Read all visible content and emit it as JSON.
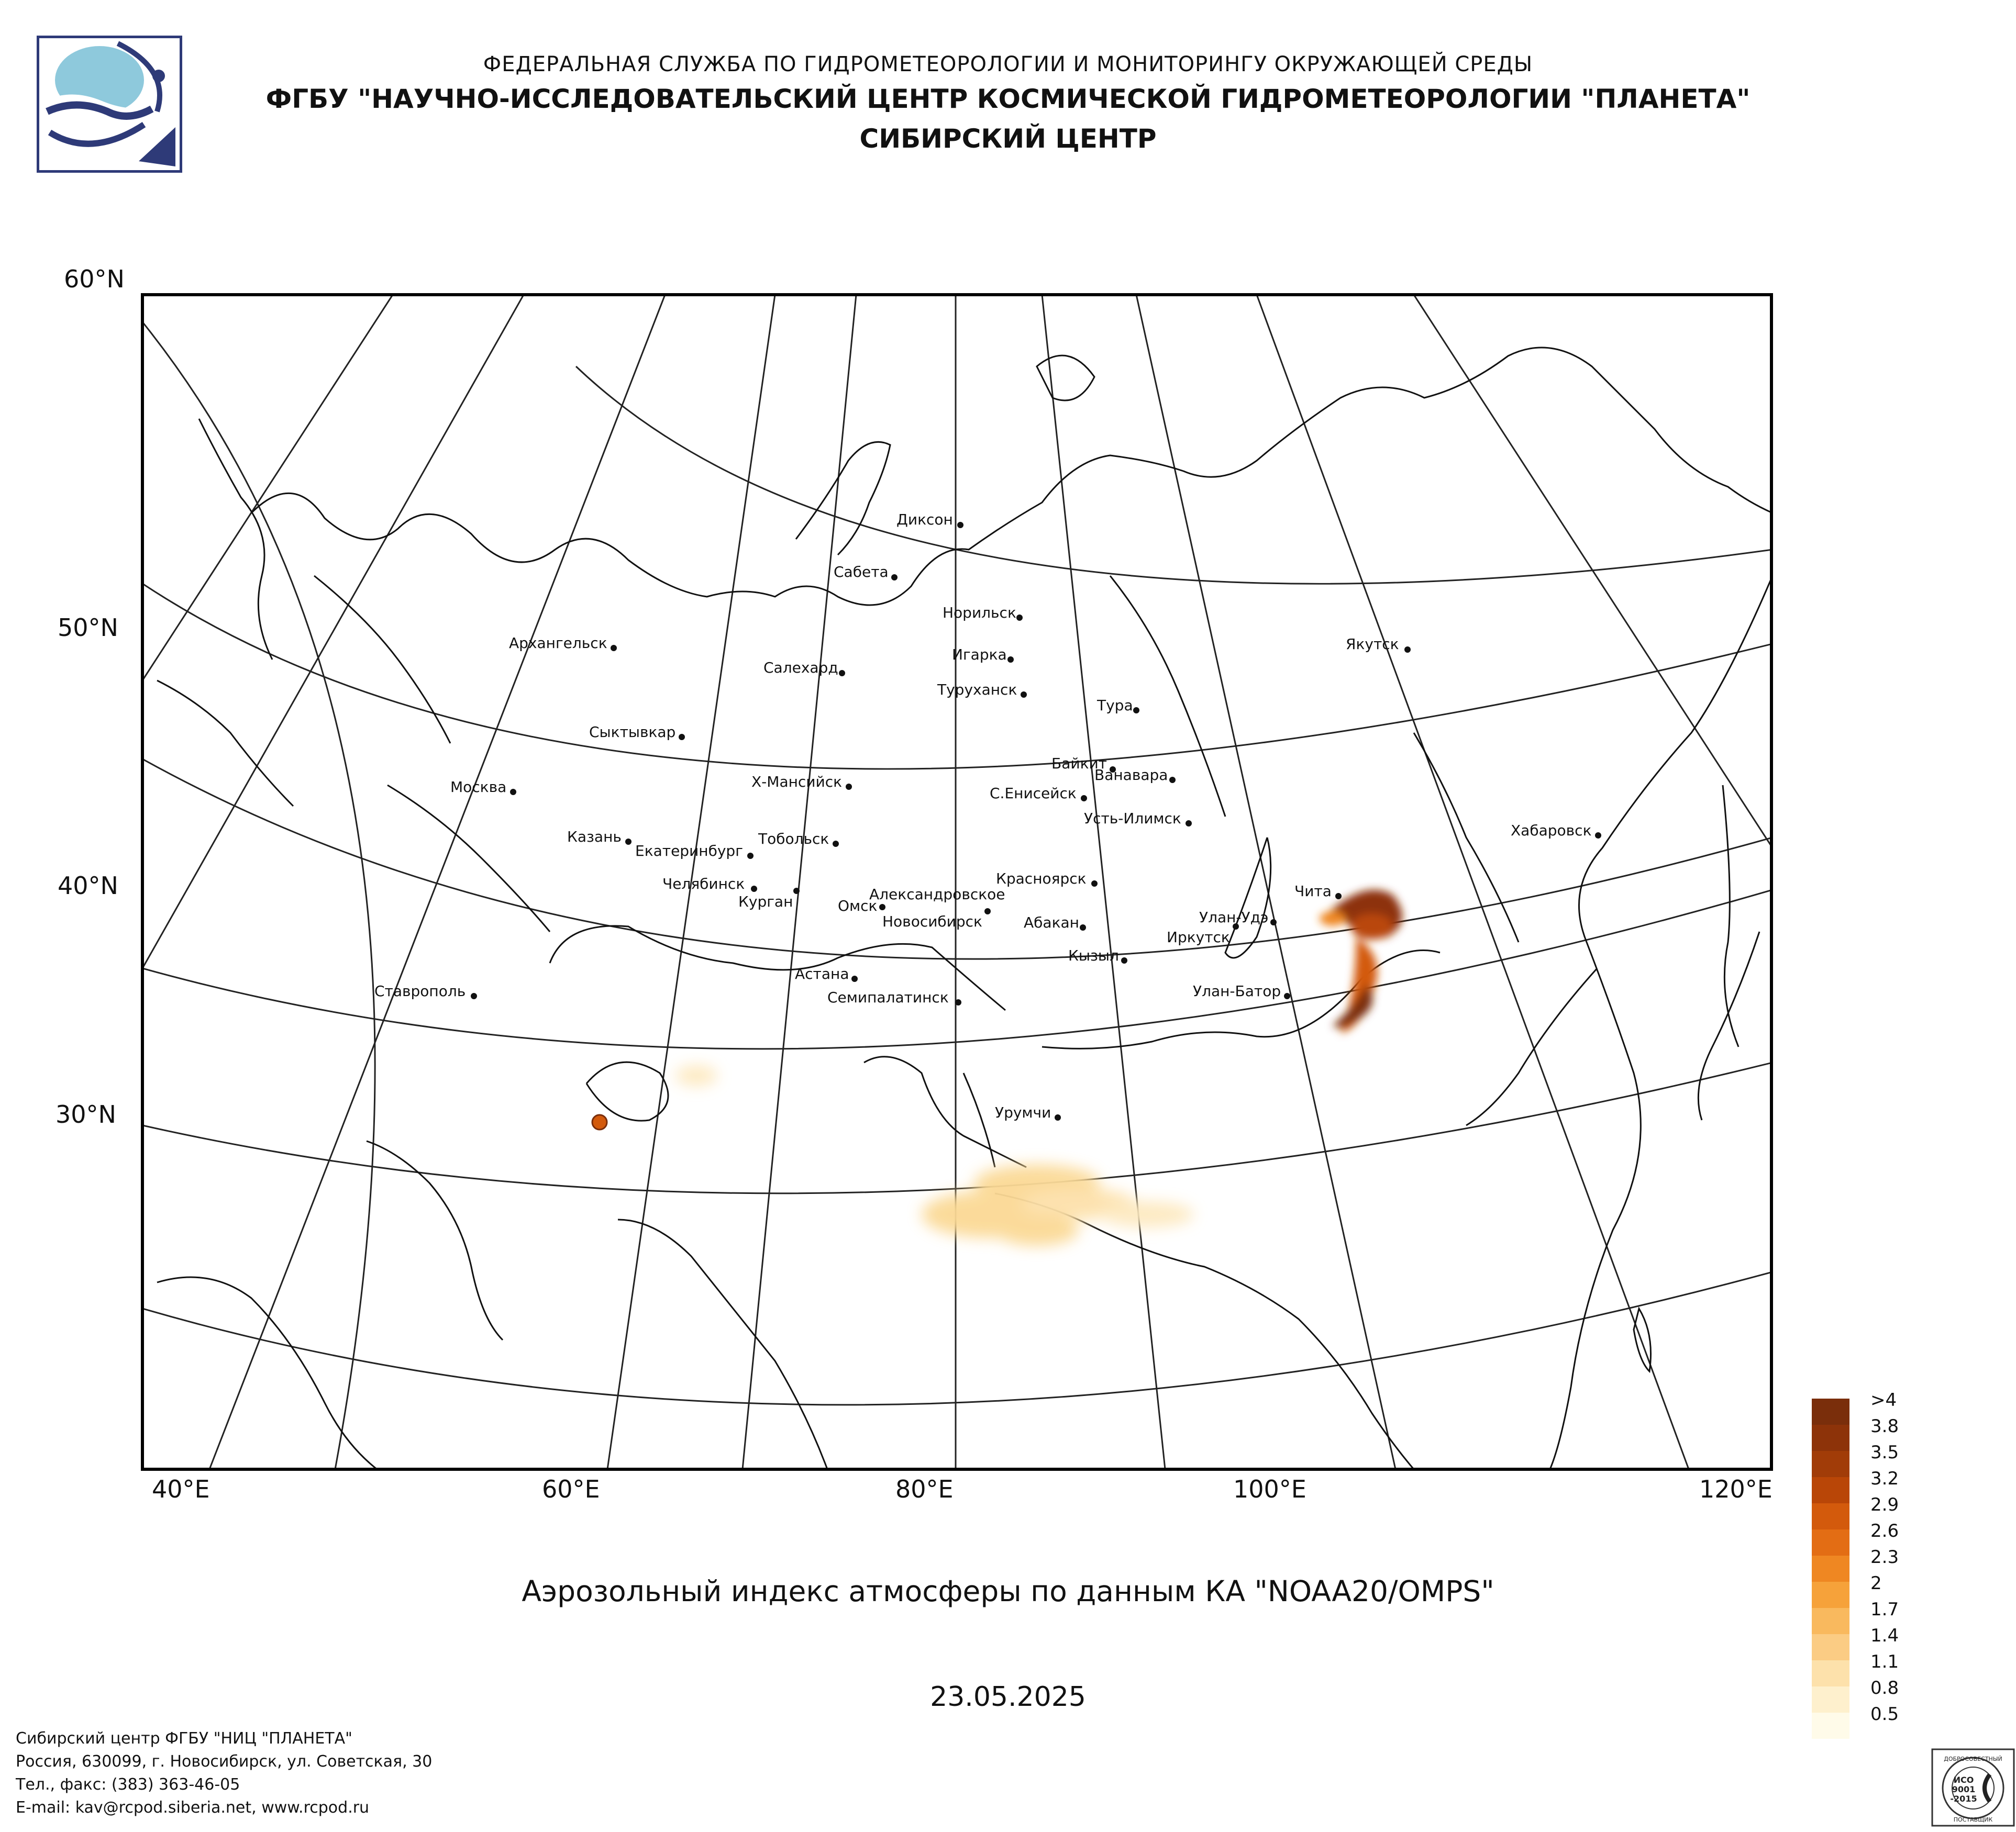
{
  "header": {
    "line1": "ФЕДЕРАЛЬНАЯ СЛУЖБА ПО ГИДРОМЕТЕОРОЛОГИИ И МОНИТОРИНГУ ОКРУЖАЮЩЕЙ СРЕДЫ",
    "line2": "ФГБУ \"НАУЧНО-ИССЛЕДОВАТЕЛЬСКИЙ ЦЕНТР КОСМИЧЕСКОЙ ГИДРОМЕТЕОРОЛОГИИ \"ПЛАНЕТА\"",
    "line3": "СИБИРСКИЙ ЦЕНТР"
  },
  "map": {
    "lat_labels": [
      "60°N",
      "50°N",
      "40°N",
      "30°N"
    ],
    "lon_labels": [
      "40°E",
      "60°E",
      "80°E",
      "100°E",
      "120°E"
    ],
    "cities": [
      {
        "name": "Диксон"
      },
      {
        "name": "Сабета"
      },
      {
        "name": "Норильск"
      },
      {
        "name": "Игарка"
      },
      {
        "name": "Салехард"
      },
      {
        "name": "Туруханск"
      },
      {
        "name": "Тура"
      },
      {
        "name": "Якутск"
      },
      {
        "name": "Архангельск"
      },
      {
        "name": "Сыктывкар"
      },
      {
        "name": "Байкит"
      },
      {
        "name": "Ванавара"
      },
      {
        "name": "Москва"
      },
      {
        "name": "Х-Мансийск"
      },
      {
        "name": "С.Енисейск"
      },
      {
        "name": "Усть-Илимск"
      },
      {
        "name": "Хабаровск"
      },
      {
        "name": "Казань"
      },
      {
        "name": "Екатеринбург"
      },
      {
        "name": "Тобольск"
      },
      {
        "name": "Красноярск"
      },
      {
        "name": "Челябинск"
      },
      {
        "name": "Курган"
      },
      {
        "name": "Александровское"
      },
      {
        "name": "Омск"
      },
      {
        "name": "Новосибирск"
      },
      {
        "name": "Абакан"
      },
      {
        "name": "Чита"
      },
      {
        "name": "Улан-Удэ"
      },
      {
        "name": "Иркутск"
      },
      {
        "name": "Кызыл"
      },
      {
        "name": "Астана"
      },
      {
        "name": "Ставрополь"
      },
      {
        "name": "Семипалатинск"
      },
      {
        "name": "Улан-Батор"
      },
      {
        "name": "Урумчи"
      }
    ]
  },
  "legend": {
    "items": [
      {
        "label": ">4",
        "color": "#7a2e0b"
      },
      {
        "label": "3.8",
        "color": "#8d3309"
      },
      {
        "label": "3.5",
        "color": "#a13c08"
      },
      {
        "label": "3.2",
        "color": "#b94607"
      },
      {
        "label": "2.9",
        "color": "#d35a0c"
      },
      {
        "label": "2.6",
        "color": "#e36d14"
      },
      {
        "label": "2.3",
        "color": "#ef8722"
      },
      {
        "label": "2",
        "color": "#f6a23a"
      },
      {
        "label": "1.7",
        "color": "#f9b95e"
      },
      {
        "label": "1.4",
        "color": "#fbcc84"
      },
      {
        "label": "1.1",
        "color": "#fde1ab"
      },
      {
        "label": "0.8",
        "color": "#fef0cd"
      },
      {
        "label": "0.5",
        "color": "#fffbe9"
      }
    ]
  },
  "title": "Аэрозольный индекс атмосферы по данным КА \"NOAA20/OMPS\"",
  "date": "23.05.2025",
  "footer": {
    "line1": "Сибирский центр ФГБУ \"НИЦ \"ПЛАНЕТА\"",
    "line2": "Россия, 630099, г. Новосибирск, ул. Советская, 30",
    "line3": "Тел., факс: (383) 363-46-05",
    "line4": "E-mail: kav@rcpod.siberia.net, www.rcpod.ru"
  },
  "cert": {
    "top_text": "ДОБРОСОВЕСТНЫЙ",
    "code1": "ИСО",
    "code2": "9001",
    "code3": "-2015",
    "bottom_text": "ПОСТАВЩИК"
  },
  "colors": {
    "logo_blue": "#8ec9dc",
    "logo_navy": "#2e3a78"
  }
}
